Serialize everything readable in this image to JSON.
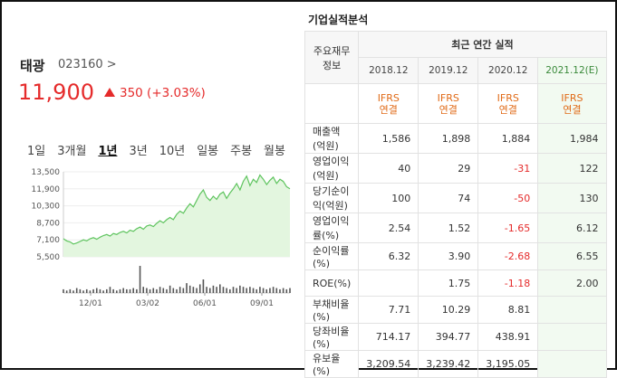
{
  "stock": {
    "name": "태광",
    "code": "023160",
    "code_arrow": ">",
    "price": "11,900",
    "change": "350 (+3.03%)",
    "up_color": "#e52b2b"
  },
  "periods": [
    {
      "label": "1일",
      "active": false
    },
    {
      "label": "3개월",
      "active": false
    },
    {
      "label": "1년",
      "active": true
    },
    {
      "label": "3년",
      "active": false
    },
    {
      "label": "10년",
      "active": false
    },
    {
      "label": "일봉",
      "active": false
    },
    {
      "label": "주봉",
      "active": false
    },
    {
      "label": "월봉",
      "active": false
    }
  ],
  "chart_data": {
    "type": "area",
    "y_ticks": [
      "13,500",
      "11,900",
      "10,300",
      "8,700",
      "7,100",
      "5,500"
    ],
    "ylim": [
      5500,
      13500
    ],
    "x_ticks": [
      "12/01",
      "03/02",
      "06/01",
      "09/01"
    ],
    "line_color": "#5ec45e",
    "fill_color": "#e3f6df",
    "values": [
      7200,
      7000,
      6900,
      6700,
      6800,
      6950,
      7100,
      7000,
      7200,
      7300,
      7150,
      7350,
      7500,
      7600,
      7450,
      7700,
      7600,
      7800,
      7900,
      7750,
      8000,
      7900,
      8150,
      8300,
      8100,
      8400,
      8500,
      8350,
      8650,
      8900,
      8700,
      9000,
      9200,
      9000,
      9500,
      9800,
      9600,
      10100,
      10500,
      10200,
      10800,
      11400,
      11800,
      11100,
      10800,
      11200,
      10900,
      11400,
      11600,
      11000,
      11500,
      11900,
      12400,
      11800,
      12600,
      13100,
      12200,
      12800,
      12500,
      13200,
      12800,
      12300,
      12700,
      13000,
      12400,
      12800,
      12600,
      12100,
      11900
    ],
    "volume": [
      3,
      2,
      3,
      2,
      4,
      3,
      2,
      3,
      2,
      3,
      4,
      3,
      2,
      3,
      5,
      3,
      2,
      3,
      4,
      3,
      3,
      4,
      3,
      22,
      5,
      4,
      3,
      4,
      3,
      5,
      4,
      3,
      6,
      4,
      3,
      5,
      4,
      8,
      6,
      5,
      4,
      7,
      11,
      5,
      4,
      6,
      5,
      7,
      5,
      4,
      3,
      5,
      4,
      6,
      5,
      4,
      5,
      4,
      3,
      5,
      4,
      3,
      4,
      5,
      4,
      3,
      4,
      3,
      4
    ]
  },
  "fin": {
    "section_title": "기업실적분석",
    "row_header": "주요재무정보",
    "period_caption": "최근 연간 실적",
    "years": [
      "2018.12",
      "2019.12",
      "2020.12",
      "2021.12(E)"
    ],
    "ifrs": [
      "IFRS\n연결",
      "IFRS\n연결",
      "IFRS\n연결",
      "IFRS\n연결"
    ],
    "rows": [
      {
        "label": "매출액(억원)",
        "values": [
          "1,586",
          "1,898",
          "1,884",
          "1,984"
        ]
      },
      {
        "label": "영업이익(억원)",
        "values": [
          "40",
          "29",
          "-31",
          "122"
        ]
      },
      {
        "label": "당기순이익(억원)",
        "values": [
          "100",
          "74",
          "-50",
          "130"
        ]
      },
      {
        "label": "영업이익률(%)",
        "values": [
          "2.54",
          "1.52",
          "-1.65",
          "6.12"
        ]
      },
      {
        "label": "순이익률(%)",
        "values": [
          "6.32",
          "3.90",
          "-2.68",
          "6.55"
        ]
      },
      {
        "label": "ROE(%)",
        "values": [
          "",
          "1.75",
          "-1.18",
          "2.00"
        ]
      },
      {
        "label": "부채비율(%)",
        "values": [
          "7.71",
          "10.29",
          "8.81",
          ""
        ]
      },
      {
        "label": "당좌비율(%)",
        "values": [
          "714.17",
          "394.77",
          "438.91",
          ""
        ]
      },
      {
        "label": "유보율(%)",
        "values": [
          "3,209.54",
          "3,239.42",
          "3,195.05",
          ""
        ]
      }
    ]
  }
}
